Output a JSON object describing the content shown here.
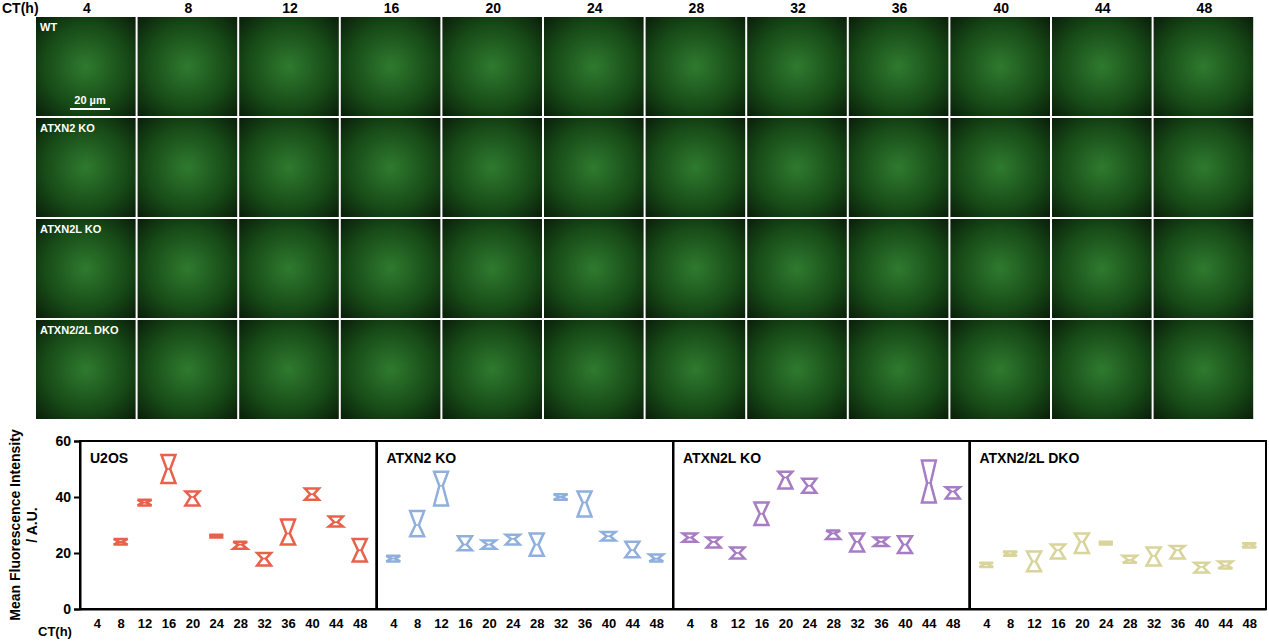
{
  "image_grid": {
    "header": "CT(h)",
    "times": [
      "4",
      "8",
      "12",
      "16",
      "20",
      "24",
      "28",
      "32",
      "36",
      "40",
      "44",
      "48"
    ],
    "rows": [
      "WT",
      "ATXN2 KO",
      "ATXN2L KO",
      "ATXN2/2L DKO"
    ],
    "scale_bar": "20 µm"
  },
  "chart_data": [
    {
      "type": "violin",
      "title": "U2OS",
      "x_label": "CT(h)",
      "y_label": "Mean Fluorescence Intensity / A.U.",
      "categories": [
        "4",
        "8",
        "12",
        "16",
        "20",
        "24",
        "28",
        "32",
        "36",
        "40",
        "44",
        "48"
      ],
      "series": [
        {
          "name": "U2OS",
          "color": "#e8614b",
          "values": [
            null,
            24,
            38,
            50,
            40,
            26,
            23,
            18,
            27,
            41,
            31,
            21
          ],
          "mins": [
            null,
            23,
            37,
            45,
            37,
            25.5,
            21.5,
            15.5,
            23,
            39,
            29.5,
            17
          ],
          "maxs": [
            null,
            25,
            39,
            55,
            42,
            26.5,
            24,
            20,
            32,
            43,
            33,
            25
          ]
        }
      ],
      "ylim": [
        0,
        60
      ],
      "yticks": [
        0,
        20,
        40,
        60
      ]
    },
    {
      "type": "violin",
      "title": "ATXN2 KO",
      "categories": [
        "4",
        "8",
        "12",
        "16",
        "20",
        "24",
        "28",
        "32",
        "36",
        "40",
        "44",
        "48"
      ],
      "series": [
        {
          "name": "ATXN2 KO",
          "color": "#8fb0dc",
          "values": [
            18,
            30,
            44,
            23,
            23,
            25,
            23,
            40,
            38,
            26,
            21,
            18
          ],
          "mins": [
            17,
            26,
            37,
            21,
            21.5,
            23,
            19,
            39,
            33,
            24.5,
            18.5,
            17
          ],
          "maxs": [
            19,
            35,
            49,
            26,
            24.5,
            26.5,
            27,
            41,
            42,
            27.5,
            24,
            19.5
          ]
        }
      ],
      "ylim": [
        0,
        60
      ],
      "yticks": [
        0,
        20,
        40,
        60
      ],
      "tick_labels": "x"
    },
    {
      "type": "violin",
      "title": "ATXN2L KO",
      "categories": [
        "4",
        "8",
        "12",
        "16",
        "20",
        "24",
        "28",
        "32",
        "36",
        "40",
        "44",
        "48"
      ],
      "series": [
        {
          "name": "ATXN2L KO",
          "color": "#a77cc4",
          "values": [
            25.5,
            24,
            20,
            34,
            47,
            44,
            27,
            24,
            24,
            23,
            45,
            42
          ],
          "mins": [
            24,
            22,
            18,
            30,
            43,
            41.5,
            25,
            20.5,
            22.5,
            20,
            38,
            39.5
          ],
          "maxs": [
            27,
            25.5,
            22,
            38,
            49,
            46.5,
            28,
            27,
            25.5,
            26,
            53,
            43.5
          ]
        }
      ],
      "ylim": [
        0,
        60
      ],
      "yticks": [
        0,
        20,
        40,
        60
      ],
      "tick_labels": "x"
    },
    {
      "type": "violin",
      "title": "ATXN2/2L DKO",
      "categories": [
        "4",
        "8",
        "12",
        "16",
        "20",
        "24",
        "28",
        "32",
        "36",
        "40",
        "44",
        "48"
      ],
      "series": [
        {
          "name": "ATXN2/2L DKO",
          "color": "#d9d49a",
          "values": [
            16,
            19.5,
            17,
            21,
            24,
            23.5,
            17.5,
            19,
            21,
            15,
            15.5,
            23
          ],
          "mins": [
            15,
            19,
            13.5,
            18,
            20,
            23,
            16.5,
            15.5,
            18,
            13,
            14.5,
            22
          ],
          "maxs": [
            16.5,
            20.5,
            20.5,
            23,
            27,
            24,
            19,
            22,
            22.5,
            16.5,
            17,
            23.5
          ]
        }
      ],
      "ylim": [
        0,
        60
      ],
      "yticks": [
        0,
        20,
        40,
        60
      ],
      "tick_labels": "x"
    }
  ]
}
